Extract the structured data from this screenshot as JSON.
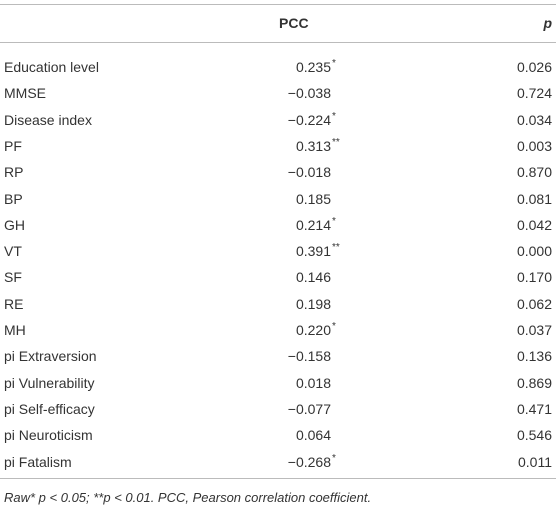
{
  "table": {
    "header": [
      "PCC",
      "p"
    ],
    "rows": [
      {
        "label": "Education level",
        "pcc": "0.235",
        "sig": "*",
        "p": "0.026"
      },
      {
        "label": "MMSE",
        "pcc": "−0.038",
        "sig": "",
        "p": "0.724"
      },
      {
        "label": "Disease index",
        "pcc": "−0.224",
        "sig": "*",
        "p": "0.034"
      },
      {
        "label": "PF",
        "pcc": "0.313",
        "sig": "**",
        "p": "0.003"
      },
      {
        "label": "RP",
        "pcc": "−0.018",
        "sig": "",
        "p": "0.870"
      },
      {
        "label": "BP",
        "pcc": "0.185",
        "sig": "",
        "p": "0.081"
      },
      {
        "label": "GH",
        "pcc": "0.214",
        "sig": "*",
        "p": "0.042"
      },
      {
        "label": "VT",
        "pcc": "0.391",
        "sig": "**",
        "p": "0.000"
      },
      {
        "label": "SF",
        "pcc": "0.146",
        "sig": "",
        "p": "0.170"
      },
      {
        "label": "RE",
        "pcc": "0.198",
        "sig": "",
        "p": "0.062"
      },
      {
        "label": "MH",
        "pcc": "0.220",
        "sig": "*",
        "p": "0.037"
      },
      {
        "label": "pi Extraversion",
        "pcc": "−0.158",
        "sig": "",
        "p": "0.136"
      },
      {
        "label": "pi Vulnerability",
        "pcc": "0.018",
        "sig": "",
        "p": "0.869"
      },
      {
        "label": "pi Self-efficacy",
        "pcc": "−0.077",
        "sig": "",
        "p": "0.471"
      },
      {
        "label": "pi Neuroticism",
        "pcc": "0.064",
        "sig": "",
        "p": "0.546"
      },
      {
        "label": "pi Fatalism",
        "pcc": "−0.268",
        "sig": "*",
        "p": "0.011"
      }
    ],
    "footnote": "Raw* p < 0.05; **p < 0.01. PCC, Pearson correlation coefficient."
  }
}
